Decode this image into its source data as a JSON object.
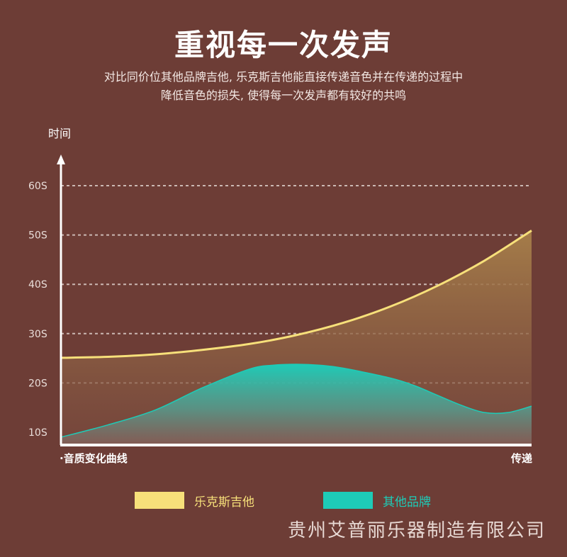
{
  "header": {
    "title": "重视每一次发声",
    "subtitle_line1": "对比同价位其他品牌吉他, 乐克斯吉他能直接传递音色并在传递的过程中",
    "subtitle_line2": "降低音色的损失, 使得每一次发声都有较好的共鸣"
  },
  "chart_data": {
    "type": "area",
    "ylabel": "时间",
    "xlabel_left": "·音质变化曲线",
    "xlabel_right": "传递",
    "y_ticks": [
      "10S",
      "20S",
      "30S",
      "40S",
      "50S",
      "60S"
    ],
    "ylim": [
      8,
      65
    ],
    "xlim": [
      0,
      100
    ],
    "grid": true,
    "legend_position": "bottom",
    "series": [
      {
        "name": "乐克斯吉他",
        "color": "#f7e07a",
        "x": [
          0,
          10,
          20,
          30,
          40,
          50,
          60,
          70,
          80,
          90,
          100
        ],
        "values": [
          25.1,
          25.3,
          25.8,
          26.7,
          27.9,
          29.7,
          32.2,
          35.5,
          39.7,
          44.8,
          50.9
        ]
      },
      {
        "name": "其他品牌",
        "color": "#1ecbb7",
        "x": [
          0,
          10,
          20,
          30,
          40,
          45,
          50,
          55,
          60,
          70,
          75,
          80,
          85,
          90,
          95,
          100
        ],
        "values": [
          9.0,
          11.5,
          14.5,
          19.0,
          22.8,
          23.6,
          23.8,
          23.6,
          23.0,
          21.0,
          19.5,
          17.5,
          15.5,
          14.0,
          14.0,
          15.3
        ]
      }
    ]
  },
  "legend": [
    {
      "label": "乐克斯吉他",
      "color": "#f7e07a"
    },
    {
      "label": "其他品牌",
      "color": "#1ecbb7"
    }
  ],
  "footer": {
    "company": "贵州艾普丽乐器制造有限公司"
  }
}
